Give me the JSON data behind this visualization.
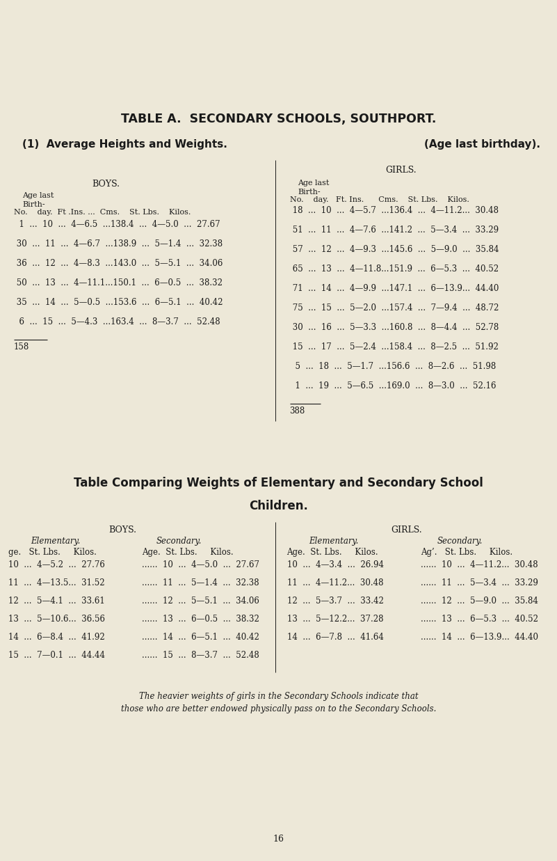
{
  "bg_color": "#ede8d8",
  "text_color": "#1a1a1a",
  "page_width": 8.01,
  "page_height": 12.37,
  "dpi": 100,
  "title1": "TABLE A.  SECONDARY SCHOOLS, SOUTHPORT.",
  "subtitle1": "(1)  Average Heights and Weights.",
  "subtitle2": "(Age last birthday).",
  "boys_header": "BOYS.",
  "girls_header": "GIRLS.",
  "boys_rows": [
    "  1  ...  10  ...  4—6.5  ...138.4  ...  4—5.0  ...  27.67",
    " 30  ...  11  ...  4—6.7  ...138.9  ...  5—1.4  ...  32.38",
    " 36  ...  12  ...  4—8.3  ...143.0  ...  5—5.1  ...  34.06",
    " 50  ...  13  ...  4—11.1...150.1  ...  6—0.5  ...  38.32",
    " 35  ...  14  ...  5—0.5  ...153.6  ...  6—5.1  ...  40.42",
    "  6  ...  15  ...  5—4.3  ...163.4  ...  8—3.7  ...  52.48"
  ],
  "girls_rows": [
    " 18  ...  10  ...  4—5.7  ...136.4  ...  4—11.2...  30.48",
    " 51  ...  11  ...  4—7.6  ...141.2  ...  5—3.4  ...  33.29",
    " 57  ...  12  ...  4—9.3  ...145.6  ...  5—9.0  ...  35.84",
    " 65  ...  13  ...  4—11.8...151.9  ...  6—5.3  ...  40.52",
    " 71  ...  14  ...  4—9.9  ...147.1  ...  6—13.9...  44.40",
    " 75  ...  15  ...  5—2.0  ...157.4  ...  7—9.4  ...  48.72",
    " 30  ...  16  ...  5—3.3  ...160.8  ...  8—4.4  ...  52.78",
    " 15  ...  17  ...  5—2.4  ...158.4  ...  8—2.5  ...  51.92",
    "  5  ...  18  ...  5—1.7  ...156.6  ...  8—2.6  ...  51.98",
    "  1  ...  19  ...  5—6.5  ...169.0  ...  8—3.0  ...  52.16"
  ],
  "boys_total": "158",
  "girls_total": "388",
  "table2_title_line1": "Table Comparing Weights of Elementary and Secondary School",
  "table2_title_line2": "Children.",
  "t2_boys_header": "BOYS.",
  "t2_girls_header": "GIRLS.",
  "t2_elem_header": "Elementary.",
  "t2_sec_header": "Secondary.",
  "t2_boys_col_header_elem": "ge.   St. Lbs.     Kilos.",
  "t2_boys_col_header_sec": "Age.   St. Lbs.     Kilos.",
  "t2_boys_rows": [
    [
      "10  ...  4—5.2  ...  27.76",
      "10  ...  4—5.0  ...  27.67"
    ],
    [
      "11  ...  4—13.5...  31.52",
      "11  ...  5—1.4  ...  32.38"
    ],
    [
      "12  ...  5—4.1  ...  33.61",
      "12  ...  5—5.1  ...  34.06"
    ],
    [
      "13  ...  5—10.6...  36.56",
      "13  ...  6—0.5  ...  38.32"
    ],
    [
      "14  ...  6—8.4  ...  41.92",
      "14  ...  6—5.1  ...  40.42"
    ],
    [
      "15  ...  7—0.1  ...  44.44",
      "15  ...  8—3.7  ...  52.48"
    ]
  ],
  "t2_girls_elem_header": "Elementary.",
  "t2_girls_sec_header": "Secondary.",
  "t2_girls_col_header_elem": "Age.   St. Lbs.     Kilos.",
  "t2_girls_col_header_sec": "Ag’.   St. Lbs.     Kilos.",
  "t2_girls_rows": [
    [
      "10  ...  4—3.4  ...  26.94",
      "10  ...  4—11.2...  30.48"
    ],
    [
      "11  ...  4—11.2...  30.48",
      "11  ...  5—3.4  ...  33.29"
    ],
    [
      "12  ...  5—3.7  ...  33.42",
      "12  ...  5—9.0  ...  35.84"
    ],
    [
      "13  ...  5—12.2...  37.28",
      "13  ...  6—5.3  ...  40.52"
    ],
    [
      "14  ...  6—7.8  ...  41.64",
      "14  ...  6—13.9...  44.40"
    ]
  ],
  "footer_line1": "The heavier weights of girls in the Secondary Schools indicate that",
  "footer_line2": "those who are better endowed physically pass on to the Secondary Schools.",
  "page_number": "16"
}
